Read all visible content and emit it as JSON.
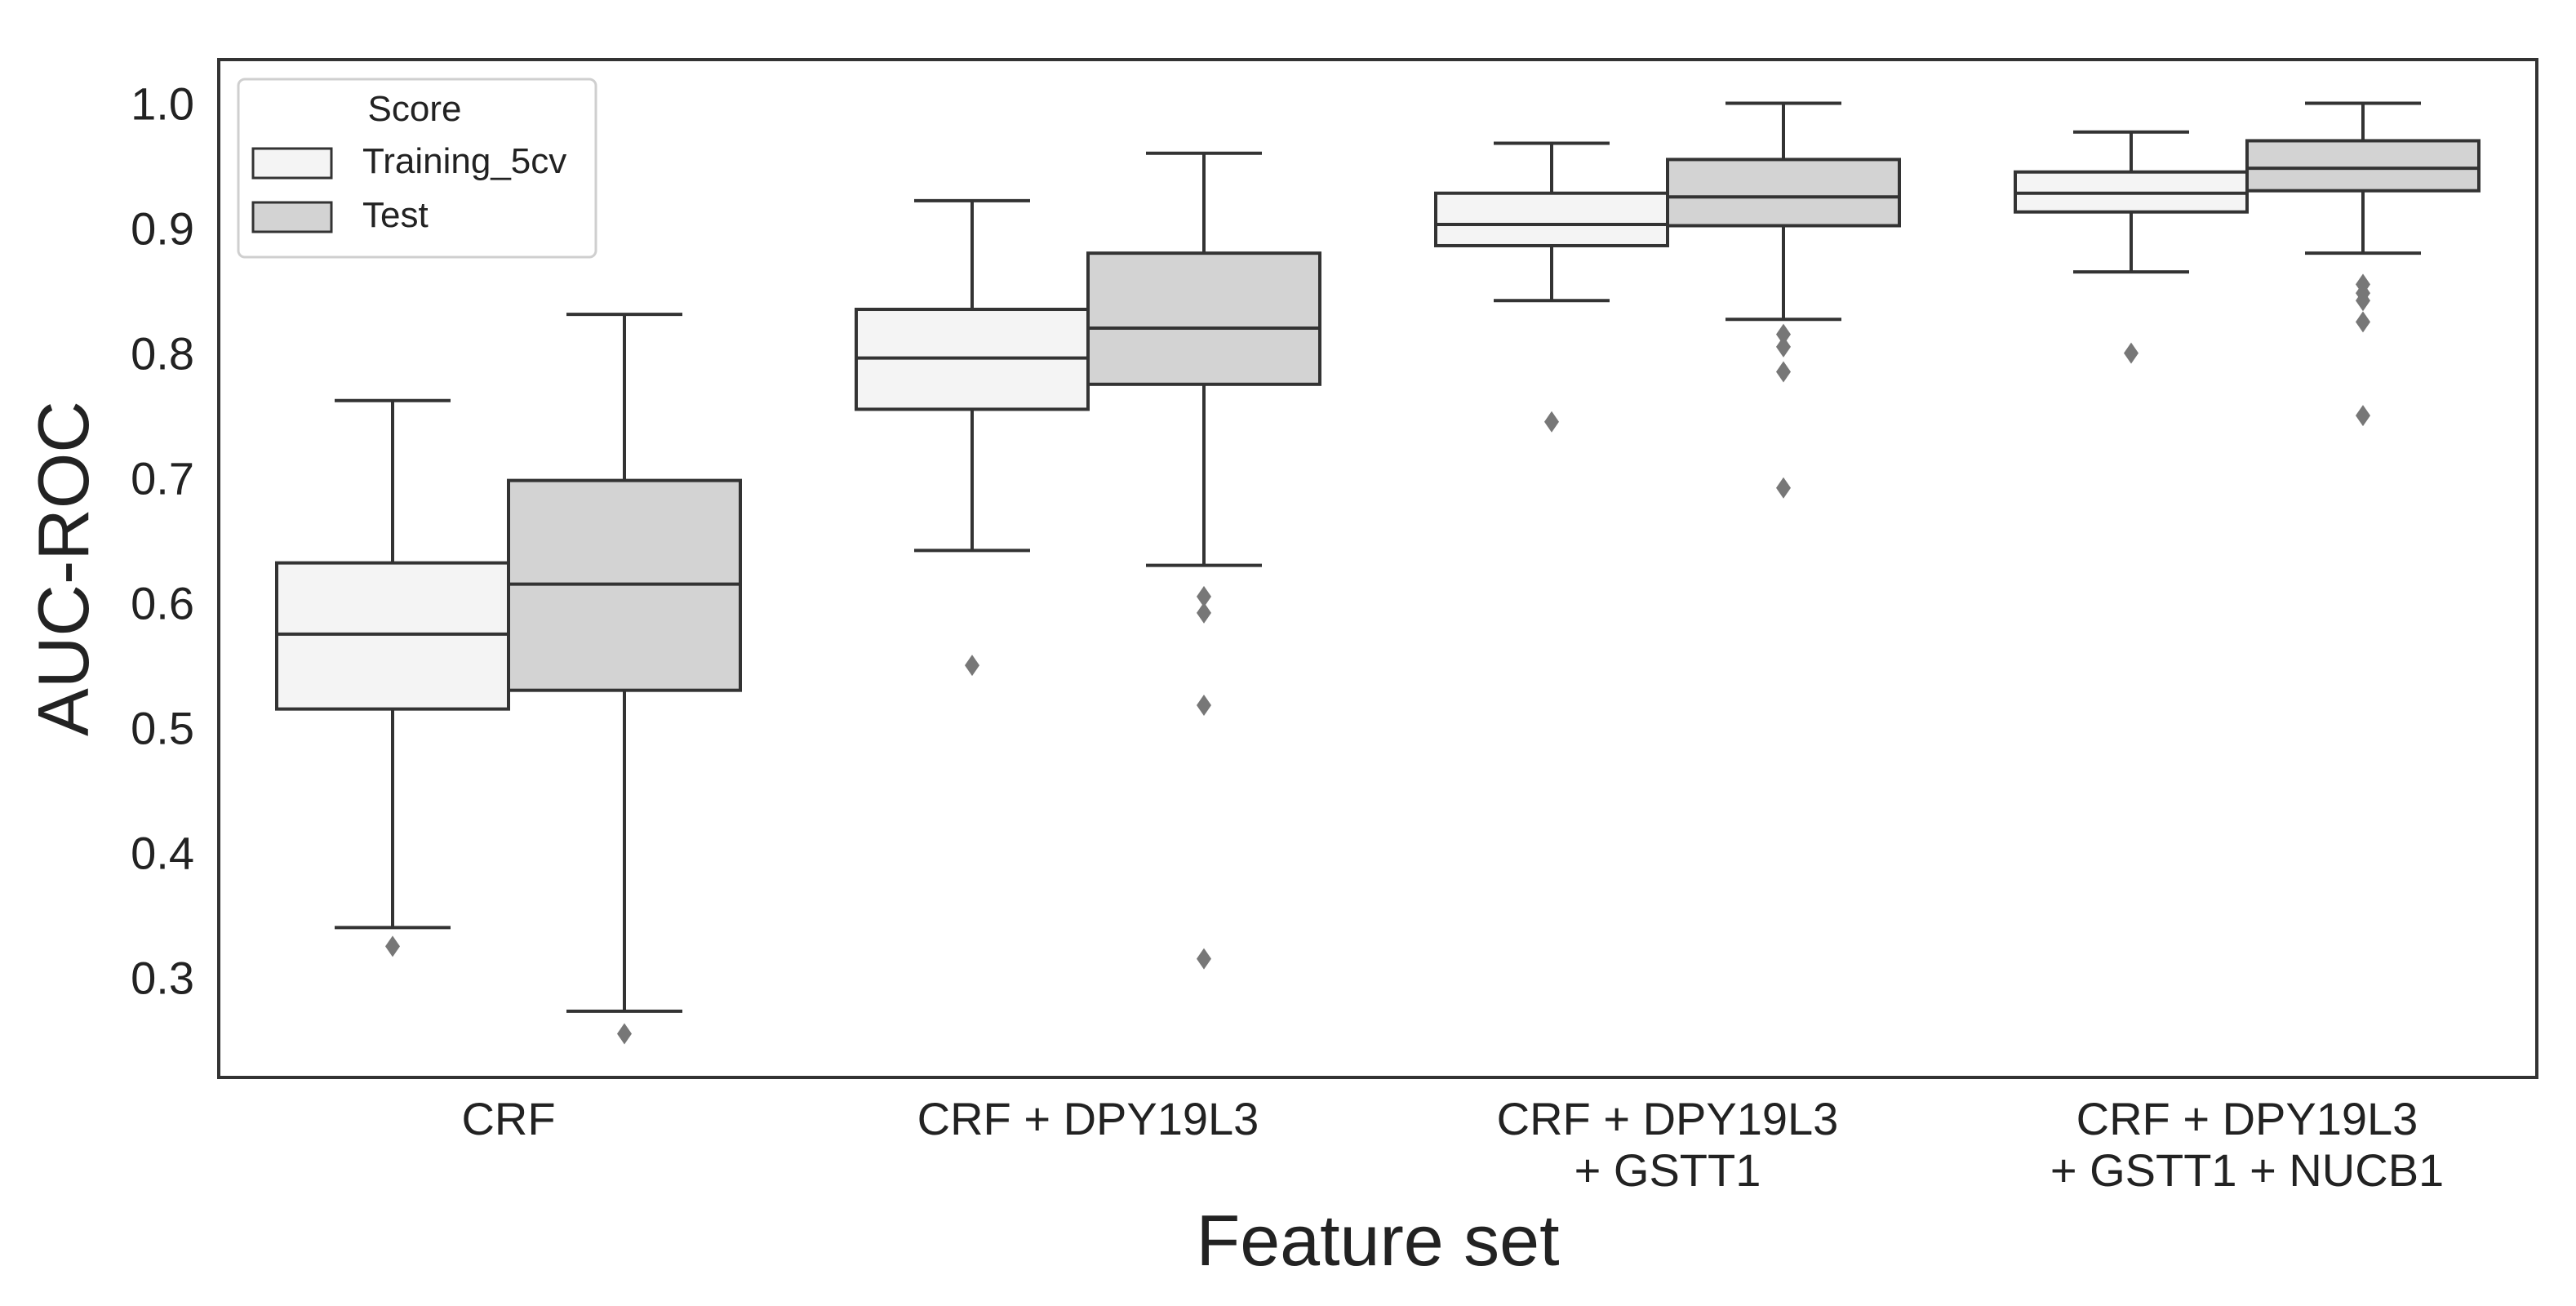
{
  "chart_data": {
    "type": "box",
    "xlabel": "Feature set",
    "ylabel": "AUC-ROC",
    "ylim": [
      0.22,
      1.035
    ],
    "yticks": [
      0.3,
      0.4,
      0.5,
      0.6,
      0.7,
      0.8,
      0.9,
      1.0
    ],
    "ytick_labels": [
      "0.3",
      "0.4",
      "0.5",
      "0.6",
      "0.7",
      "0.8",
      "0.9",
      "1.0"
    ],
    "grid": false,
    "legend": {
      "title": "Score",
      "position": "top-left",
      "entries": [
        "Training_5cv",
        "Test"
      ]
    },
    "categories": [
      [
        "CRF"
      ],
      [
        "CRF + DPY19L3"
      ],
      [
        "CRF + DPY19L3",
        "+ GSTT1"
      ],
      [
        "CRF + DPY19L3",
        "+ GSTT1 + NUCB1"
      ]
    ],
    "series": [
      {
        "name": "Training_5cv",
        "color": "#f4f4f4",
        "boxes": [
          {
            "whisker_low": 0.34,
            "q1": 0.515,
            "median": 0.575,
            "q3": 0.632,
            "whisker_high": 0.762,
            "outliers": [
              0.325
            ]
          },
          {
            "whisker_low": 0.642,
            "q1": 0.755,
            "median": 0.796,
            "q3": 0.835,
            "whisker_high": 0.922,
            "outliers": [
              0.55
            ]
          },
          {
            "whisker_low": 0.842,
            "q1": 0.886,
            "median": 0.903,
            "q3": 0.928,
            "whisker_high": 0.968,
            "outliers": [
              0.745
            ]
          },
          {
            "whisker_low": 0.865,
            "q1": 0.913,
            "median": 0.928,
            "q3": 0.945,
            "whisker_high": 0.977,
            "outliers": [
              0.8
            ]
          }
        ]
      },
      {
        "name": "Test",
        "color": "#d3d3d3",
        "boxes": [
          {
            "whisker_low": 0.273,
            "q1": 0.53,
            "median": 0.615,
            "q3": 0.698,
            "whisker_high": 0.831,
            "outliers": [
              0.255
            ]
          },
          {
            "whisker_low": 0.63,
            "q1": 0.775,
            "median": 0.82,
            "q3": 0.88,
            "whisker_high": 0.96,
            "outliers": [
              0.605,
              0.592,
              0.518,
              0.315
            ]
          },
          {
            "whisker_low": 0.827,
            "q1": 0.902,
            "median": 0.925,
            "q3": 0.955,
            "whisker_high": 1.0,
            "outliers": [
              0.815,
              0.805,
              0.785,
              0.692
            ]
          },
          {
            "whisker_low": 0.88,
            "q1": 0.93,
            "median": 0.948,
            "q3": 0.97,
            "whisker_high": 1.0,
            "outliers": [
              0.855,
              0.848,
              0.842,
              0.825,
              0.75
            ]
          }
        ]
      }
    ]
  }
}
